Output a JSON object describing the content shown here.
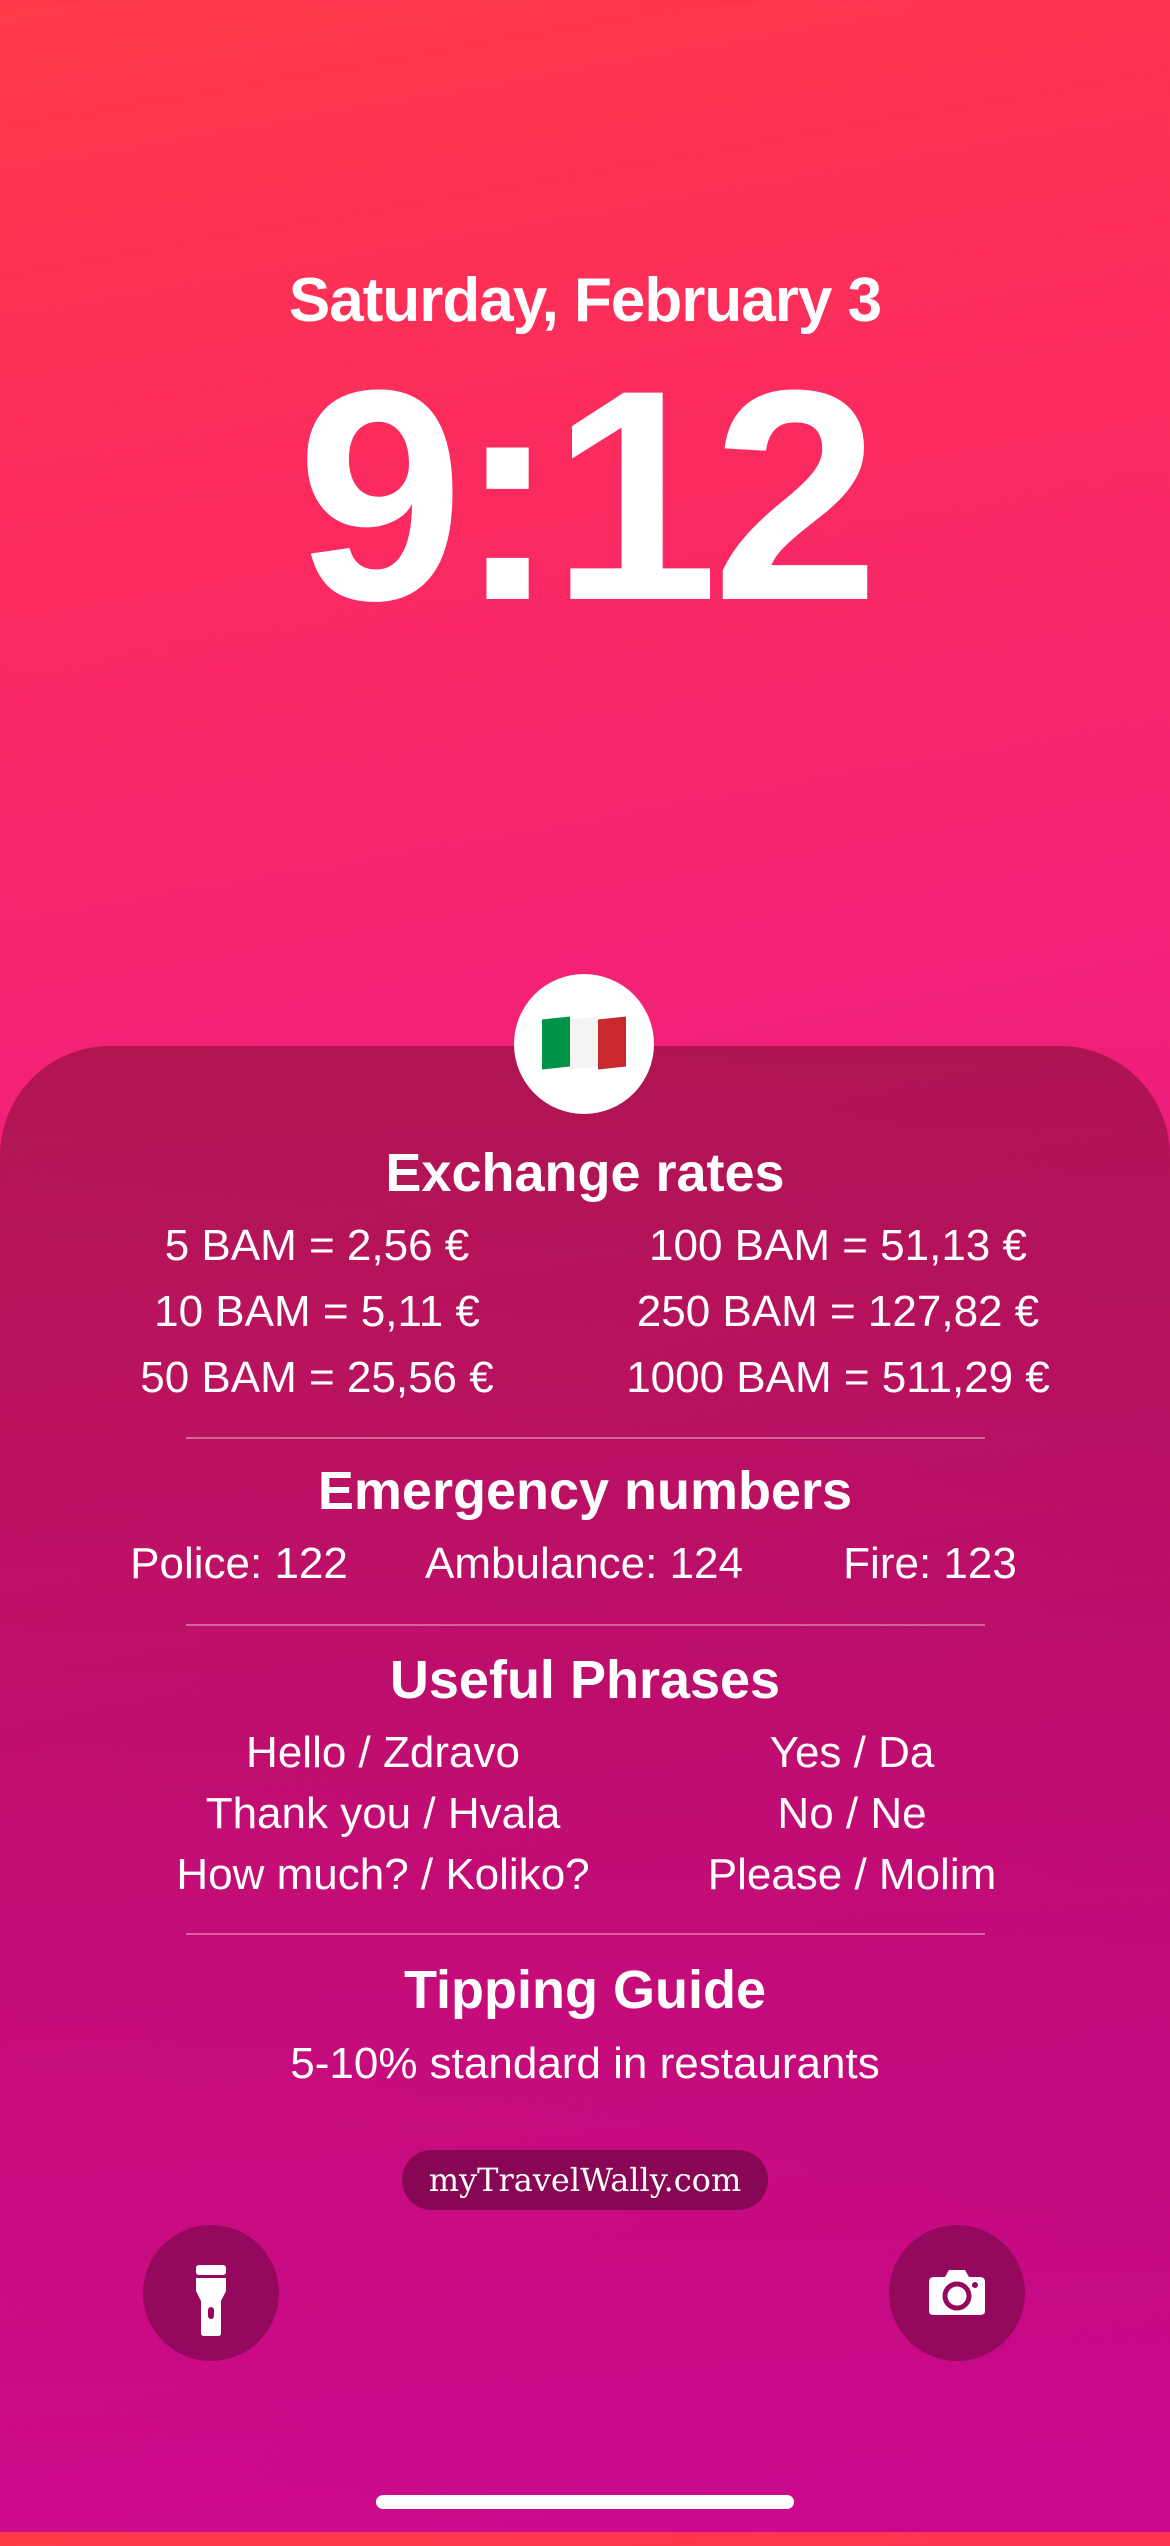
{
  "lockscreen": {
    "date": "Saturday, February 3",
    "time": "9:12"
  },
  "card": {
    "flag_icon": "italy-flag",
    "exchange": {
      "title": "Exchange rates",
      "left": [
        "5 BAM = 2,56 €",
        "10 BAM = 5,11 €",
        "50 BAM = 25,56 €"
      ],
      "right": [
        "100 BAM = 51,13 €",
        "250 BAM = 127,82 €",
        "1000 BAM = 511,29 €"
      ]
    },
    "emergency": {
      "title": "Emergency numbers",
      "items": [
        "Police: 122",
        "Ambulance: 124",
        "Fire: 123"
      ]
    },
    "phrases": {
      "title": "Useful Phrases",
      "left": [
        "Hello / Zdravo",
        "Thank you / Hvala",
        "How much? / Koliko?"
      ],
      "right": [
        "Yes / Da",
        "No / Ne",
        "Please / Molim"
      ]
    },
    "tipping": {
      "title": "Tipping Guide",
      "text": "5-10% standard in restaurants"
    },
    "brand": "myTravelWally.com"
  },
  "controls": {
    "left_icon": "flashlight-icon",
    "right_icon": "camera-icon"
  },
  "colors": {
    "gradient_top": "#ff3a48",
    "gradient_bottom": "#c9088f",
    "button_bg": "#94085e",
    "pill_bg": "#870754"
  }
}
